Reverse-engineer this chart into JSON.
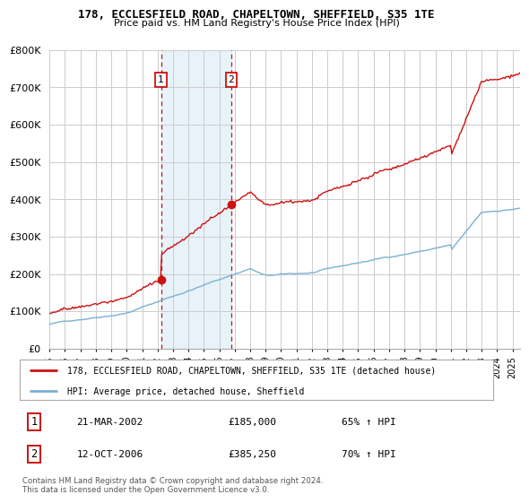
{
  "title_line1": "178, ECCLESFIELD ROAD, CHAPELTOWN, SHEFFIELD, S35 1TE",
  "title_line2": "Price paid vs. HM Land Registry's House Price Index (HPI)",
  "background_color": "#ffffff",
  "plot_bg_color": "#ffffff",
  "grid_color": "#cccccc",
  "hpi_color": "#7ab0d4",
  "price_color": "#cc1111",
  "sale1_date": 2002.22,
  "sale1_price": 185000,
  "sale1_date_str": "21-MAR-2002",
  "sale1_hpi_pct": "65% ↑ HPI",
  "sale2_date": 2006.78,
  "sale2_price": 385250,
  "sale2_date_str": "12-OCT-2006",
  "sale2_hpi_pct": "70% ↑ HPI",
  "legend_line1": "178, ECCLESFIELD ROAD, CHAPELTOWN, SHEFFIELD, S35 1TE (detached house)",
  "legend_line2": "HPI: Average price, detached house, Sheffield",
  "footnote": "Contains HM Land Registry data © Crown copyright and database right 2024.\nThis data is licensed under the Open Government Licence v3.0.",
  "ylim": [
    0,
    800000
  ],
  "yticks": [
    0,
    100000,
    200000,
    300000,
    400000,
    500000,
    600000,
    700000,
    800000
  ],
  "xlim_start": 1995.0,
  "xlim_end": 2025.5,
  "xticks": [
    1995,
    1996,
    1997,
    1998,
    1999,
    2000,
    2001,
    2002,
    2003,
    2004,
    2005,
    2006,
    2007,
    2008,
    2009,
    2010,
    2011,
    2012,
    2013,
    2014,
    2015,
    2016,
    2017,
    2018,
    2019,
    2020,
    2021,
    2022,
    2023,
    2024,
    2025
  ],
  "span_color": "#daeaf5",
  "span_alpha": 0.6
}
